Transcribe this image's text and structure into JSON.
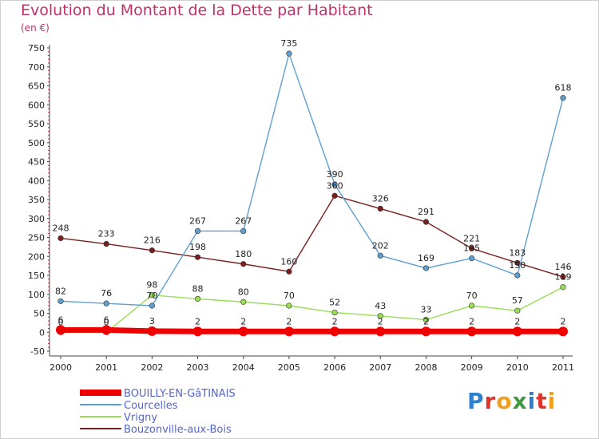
{
  "title": "Evolution du Montant de la Dette par Habitant",
  "subtitle": "(en €)",
  "logo": {
    "text": "Proxiti",
    "colors": [
      "#2f7fd0",
      "#e0342e",
      "#f0a020",
      "#3f9a3f",
      "#2f7fd0",
      "#e0342e",
      "#f0a020"
    ]
  },
  "chart_data": {
    "type": "line",
    "title": "Evolution du Montant de la Dette par Habitant",
    "subtitle": "(en €)",
    "x": [
      "2000",
      "2001",
      "2002",
      "2003",
      "2004",
      "2005",
      "2006",
      "2007",
      "2008",
      "2009",
      "2010",
      "2011"
    ],
    "ylim": [
      -50,
      750
    ],
    "yticks": [
      -50,
      0,
      50,
      100,
      150,
      200,
      250,
      300,
      350,
      400,
      450,
      500,
      550,
      600,
      650,
      700,
      750
    ],
    "grid": false,
    "legend_position": "bottom-left",
    "series": [
      {
        "name": "BOUILLY-EN-GâTINAIS",
        "color": "#ee0000",
        "values": [
          6,
          6,
          3,
          2,
          2,
          2,
          2,
          2,
          2,
          2,
          2,
          2
        ]
      },
      {
        "name": "Courcelles",
        "color": "#5f9fd0",
        "values": [
          82,
          76,
          70,
          267,
          267,
          735,
          390,
          202,
          169,
          195,
          150,
          618
        ]
      },
      {
        "name": "Vrigny",
        "color": "#99dd55",
        "values": [
          0,
          0,
          98,
          88,
          80,
          70,
          52,
          43,
          33,
          70,
          57,
          119
        ]
      },
      {
        "name": "Bouzonville-aux-Bois",
        "color": "#7a1f1f",
        "values": [
          248,
          233,
          216,
          198,
          180,
          160,
          360,
          326,
          291,
          221,
          183,
          146
        ]
      }
    ]
  }
}
